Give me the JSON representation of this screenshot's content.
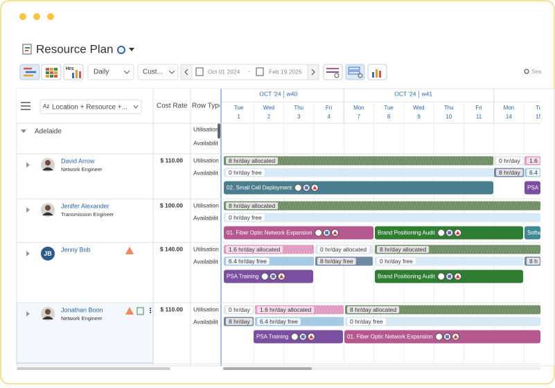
{
  "header": {
    "title": "Resource Plan"
  },
  "toolbar": {
    "hours_icon": "Hrs",
    "view": "Daily",
    "range": "Cust...",
    "start_date": "Oct 01 2024",
    "end_date": "Feb 19 2025",
    "search": "Sea"
  },
  "grid": {
    "group_by": "Location + Resource +...",
    "columns": [
      "Cost Rate",
      "Row Type"
    ],
    "weeks": [
      {
        "month": "OCT '24",
        "week": "w40"
      },
      {
        "month": "OCT '24",
        "week": "w41"
      }
    ],
    "days": [
      {
        "dow": "Tue",
        "date": "1"
      },
      {
        "dow": "Wed",
        "date": "2"
      },
      {
        "dow": "Thu",
        "date": "3"
      },
      {
        "dow": "Fri",
        "date": "4"
      },
      {
        "dow": "Mon",
        "date": "7"
      },
      {
        "dow": "Tue",
        "date": "8"
      },
      {
        "dow": "Wed",
        "date": "9"
      },
      {
        "dow": "Thu",
        "date": "10"
      },
      {
        "dow": "Fri",
        "date": "11"
      },
      {
        "dow": "Mon",
        "date": "14"
      },
      {
        "dow": "Tu",
        "date": "15"
      }
    ],
    "groups": [
      {
        "name": "Adelaide",
        "row_types": [
          "Utilisation",
          "Availabilit"
        ]
      }
    ],
    "resources": [
      {
        "name": "David Arrow",
        "role": "Network Engineer",
        "rate": "$ 110.00",
        "row_types": [
          "Utilisation",
          "Availabilit"
        ],
        "utilisation": [
          "8 hr/day allocated",
          "0 hr/day",
          "1.6"
        ],
        "availability": [
          "0 hr/day free",
          "8 hr/day",
          "6.4"
        ],
        "tasks": [
          "02. Small Cell Deployment",
          "PSA T"
        ]
      },
      {
        "name": "Jenifer Alexander",
        "role": "Transmission Engineer",
        "rate": "$ 100.00",
        "row_types": [
          "Utilisation",
          "Availabilit"
        ],
        "utilisation": [
          "8 hr/day allocated"
        ],
        "availability": [
          "0 hr/day free"
        ],
        "tasks": [
          "01. Fiber Optic Network Expansion",
          "Brand Positioning Audit",
          "Softw"
        ]
      },
      {
        "name": "Jenny Bob",
        "initials": "JB",
        "rate": "$ 140.00",
        "row_types": [
          "Utilisation",
          "Availabilit"
        ],
        "utilisation": [
          "1.6 hr/day allocated",
          "0 hr/day allocated",
          "8 hr/day allocated"
        ],
        "availability": [
          "6.4 hr/day free",
          "8 hr/day free",
          "0 hr/day free",
          "8 h"
        ],
        "tasks": [
          "PSA Training",
          "Brand Positioning Audit"
        ]
      },
      {
        "name": "Jonathan Boon",
        "role": "Network Engineer",
        "rate": "$ 110.00",
        "row_types": [
          "Utilisation",
          "Availabilit"
        ],
        "utilisation": [
          "0 hr/day",
          "1.6 hr/day allocated",
          "8 hr/day allocated"
        ],
        "availability": [
          "8 hr/day",
          "6.4 hr/day free",
          "0 hr/day free"
        ],
        "tasks": [
          "PSA Training",
          "01. Fiber Optic Network Expansion"
        ]
      }
    ]
  }
}
